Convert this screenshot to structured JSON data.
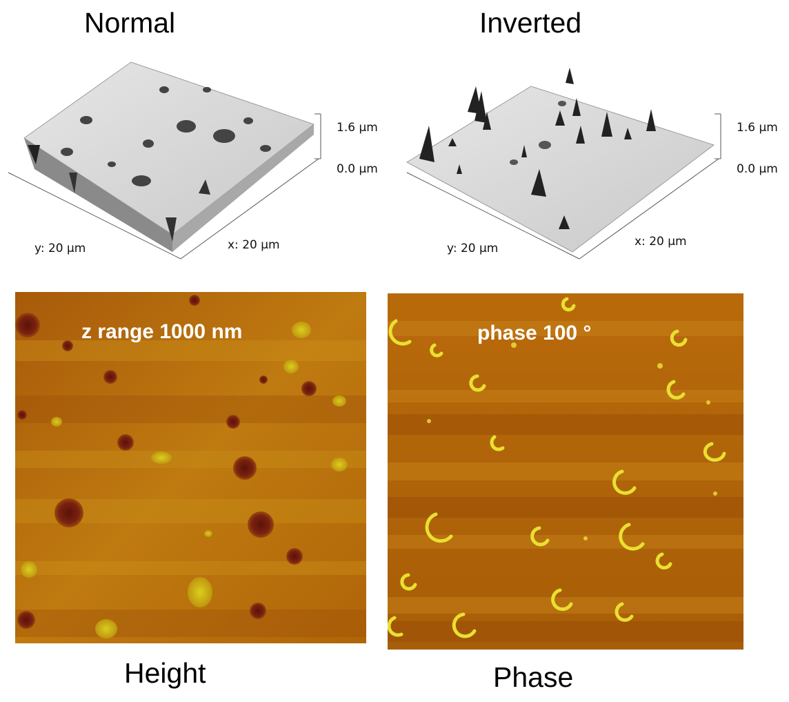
{
  "top": {
    "left_title": "Normal",
    "right_title": "Inverted",
    "left_scale": {
      "top_label": "1.6 µm",
      "bottom_label": "0.0 µm",
      "y_label": "y: 20 µm",
      "x_label": "x: 20 µm"
    },
    "right_scale": {
      "top_label": "1.6 µm",
      "bottom_label": "0.0 µm",
      "y_label": "y: 20 µm",
      "x_label": "x: 20 µm"
    }
  },
  "bottom": {
    "height_overlay": "z range 1000 nm",
    "phase_overlay": "phase 100 °",
    "height_caption": "Height",
    "phase_caption": "Phase"
  },
  "colors": {
    "afm_base": "#b86b08",
    "afm_dark": "#6e1d0c",
    "afm_bright": "#d9d21a",
    "surface": "#dcdcdc"
  }
}
